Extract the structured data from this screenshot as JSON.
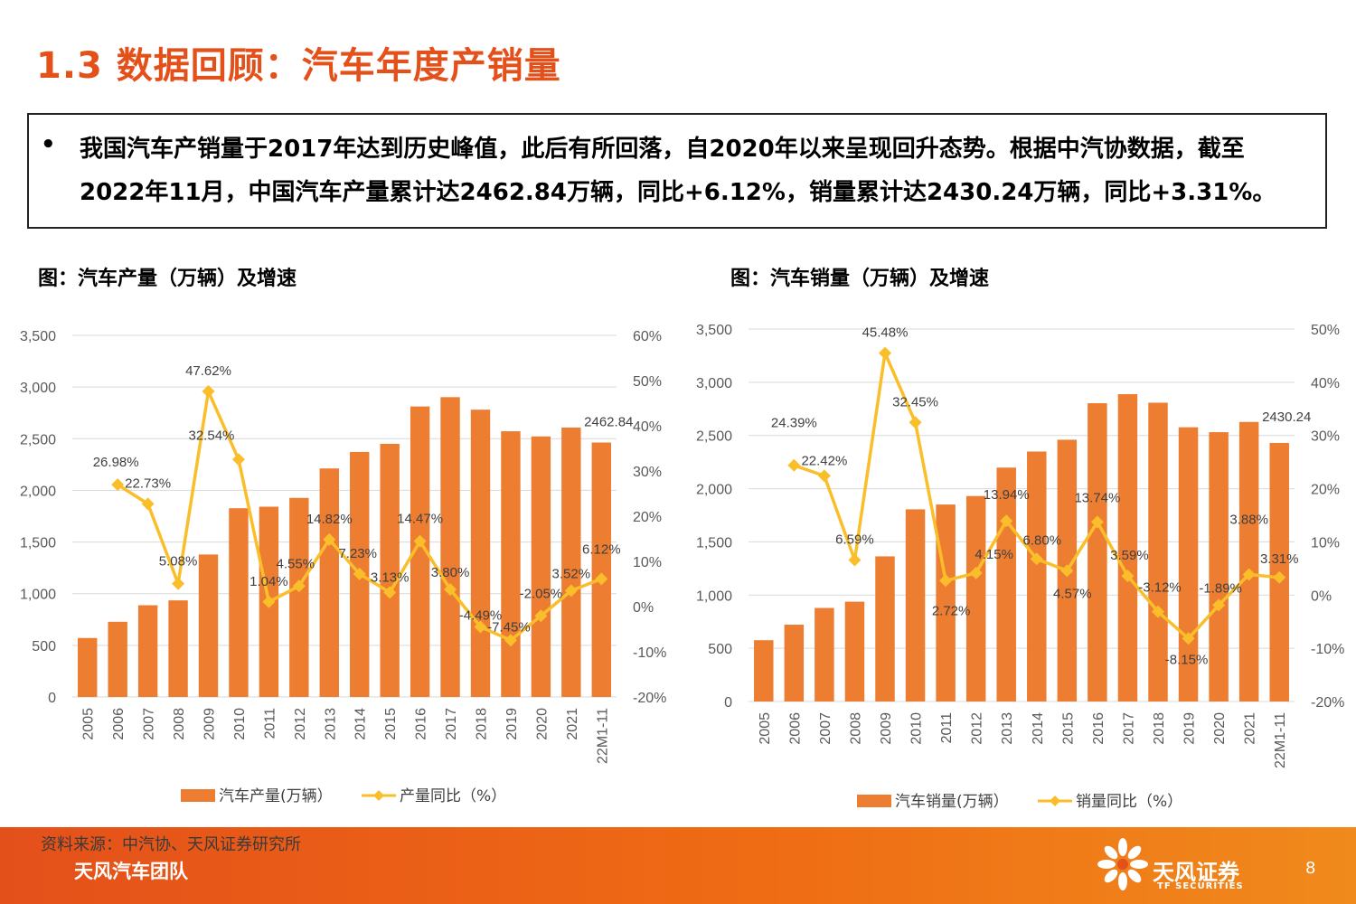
{
  "title": "1.3 数据回顾：汽车年度产销量",
  "summary": {
    "bullet": "•",
    "line1": "我国汽车产销量于2017年达到历史峰值，此后有所回落，自2020年以来呈现回升态势。根据中汽协数据，截至",
    "line2": "2022年11月，中国汽车产量累计达2462.84万辆，同比+6.12%，销量累计达2430.24万辆，同比+3.31%。"
  },
  "colors": {
    "bar": "#ed7d31",
    "line": "#fbbe2b",
    "title": "#e4501a"
  },
  "chart_data": [
    {
      "type": "bar",
      "title": "图：汽车产量（万辆）及增速",
      "categories": [
        "2005",
        "2006",
        "2007",
        "2008",
        "2009",
        "2010",
        "2011",
        "2012",
        "2013",
        "2014",
        "2015",
        "2016",
        "2017",
        "2018",
        "2019",
        "2020",
        "2021",
        "22M1-11"
      ],
      "y_ticks": [
        "0",
        "500",
        "1,000",
        "1,500",
        "2,000",
        "2,500",
        "3,000",
        "3,500"
      ],
      "y2_ticks": [
        "-20%",
        "-10%",
        "0%",
        "10%",
        "20%",
        "30%",
        "40%",
        "50%",
        "60%"
      ],
      "ylim": [
        0,
        3500
      ],
      "y2lim": [
        -20,
        60
      ],
      "series": [
        {
          "name": "汽车产量(万辆）",
          "type": "bar",
          "values": [
            571,
            728,
            888,
            935,
            1379,
            1827,
            1842,
            1927,
            2212,
            2372,
            2450,
            2812,
            2902,
            2781,
            2572,
            2522,
            2608,
            2463
          ]
        },
        {
          "name": "产量同比（%）",
          "type": "line",
          "values": [
            null,
            26.98,
            22.73,
            5.08,
            47.62,
            32.54,
            1.04,
            4.55,
            14.82,
            7.23,
            3.13,
            14.47,
            3.8,
            -4.49,
            -7.45,
            -2.05,
            3.52,
            6.12
          ]
        }
      ],
      "bar_label": {
        "index": 17,
        "text": "2462.84"
      },
      "line_labels": [
        "",
        "26.98%",
        "22.73%",
        "5.08%",
        "47.62%",
        "32.54%",
        "1.04%",
        "4.55%",
        "14.82%",
        "7.23%",
        "3.13%",
        "14.47%",
        "3.80%",
        "-4.49%",
        "-7.45%",
        "-2.05%",
        "3.52%",
        "6.12%"
      ],
      "legend": [
        "汽车产量(万辆）",
        "产量同比（%）"
      ]
    },
    {
      "type": "bar",
      "title": "图：汽车销量（万辆）及增速",
      "categories": [
        "2005",
        "2006",
        "2007",
        "2008",
        "2009",
        "2010",
        "2011",
        "2012",
        "2013",
        "2014",
        "2015",
        "2016",
        "2017",
        "2018",
        "2019",
        "2020",
        "2021",
        "22M1-11"
      ],
      "y_ticks": [
        "0",
        "500",
        "1,000",
        "1,500",
        "2,000",
        "2,500",
        "3,000",
        "3,500"
      ],
      "y2_ticks": [
        "-20%",
        "-10%",
        "0%",
        "10%",
        "20%",
        "30%",
        "40%",
        "50%"
      ],
      "ylim": [
        0,
        3500
      ],
      "y2lim": [
        -20,
        50
      ],
      "series": [
        {
          "name": "汽车销量(万辆）",
          "type": "bar",
          "values": [
            576,
            722,
            879,
            938,
            1364,
            1806,
            1851,
            1931,
            2198,
            2349,
            2460,
            2803,
            2888,
            2808,
            2577,
            2531,
            2627,
            2430
          ]
        },
        {
          "name": "销量同比（%）",
          "type": "line",
          "values": [
            null,
            24.39,
            22.42,
            6.59,
            45.48,
            32.45,
            2.72,
            4.15,
            13.94,
            6.8,
            4.57,
            13.74,
            3.59,
            -3.12,
            -8.15,
            -1.89,
            3.88,
            3.31
          ]
        }
      ],
      "bar_label": {
        "index": 17,
        "text": "2430.24"
      },
      "line_labels": [
        "",
        "24.39%",
        "22.42%",
        "6.59%",
        "45.48%",
        "32.45%",
        "2.72%",
        "4.15%",
        "13.94%",
        "6.80%",
        "4.57%",
        "13.74%",
        "3.59%",
        "-3.12%",
        "-8.15%",
        "-1.89%",
        "3.88%",
        "3.31%"
      ],
      "legend": [
        "汽车销量(万辆）",
        "销量同比（%）"
      ]
    }
  ],
  "footer": {
    "source": "资料来源：中汽协、天风证券研究所",
    "team": "天风汽车团队",
    "brand_cn": "天风证券",
    "brand_en": "TF SECURITIES",
    "page": "8"
  }
}
